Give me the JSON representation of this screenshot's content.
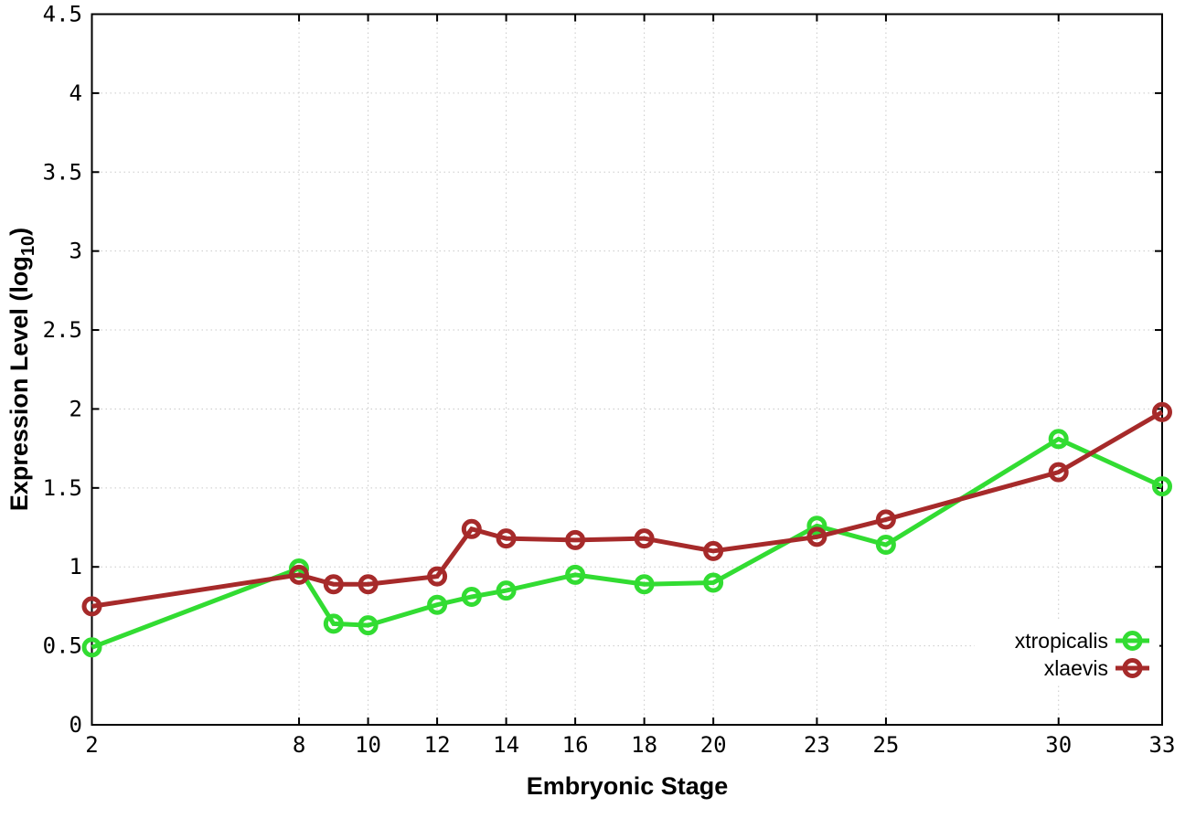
{
  "chart_data": {
    "type": "line",
    "title": "",
    "xlabel": "Embryonic Stage",
    "ylabel": "Expression Level (log10)",
    "ylabel_parts": {
      "pre": "Expression Level (log",
      "sub": "10",
      "post": ")"
    },
    "x": [
      2,
      8,
      9,
      10,
      12,
      13,
      14,
      16,
      18,
      20,
      23,
      25,
      30,
      33
    ],
    "series": [
      {
        "name": "xtropicalis",
        "color": "#32dc32",
        "values": [
          0.49,
          0.99,
          0.64,
          0.63,
          0.76,
          0.81,
          0.85,
          0.95,
          0.89,
          0.9,
          1.26,
          1.14,
          1.81,
          1.51
        ]
      },
      {
        "name": "xlaevis",
        "color": "#a62a2a",
        "values": [
          0.75,
          0.95,
          0.89,
          0.89,
          0.94,
          1.24,
          1.18,
          1.17,
          1.18,
          1.1,
          1.19,
          1.3,
          1.6,
          1.98
        ]
      }
    ],
    "xlim": [
      2,
      33
    ],
    "ylim": [
      0,
      4.5
    ],
    "x_ticks": [
      2,
      8,
      10,
      12,
      14,
      16,
      18,
      20,
      23,
      25,
      30,
      33
    ],
    "y_ticks": [
      0,
      0.5,
      1,
      1.5,
      2,
      2.5,
      3,
      3.5,
      4,
      4.5
    ],
    "grid": true,
    "legend_position": "bottom-right",
    "marker": "open-circle"
  },
  "colors": {
    "background": "#ffffff",
    "frame": "#000000",
    "grid": "#c9c9c9",
    "text": "#000000",
    "xtropicalis": "#32dc32",
    "xlaevis": "#a62a2a"
  }
}
